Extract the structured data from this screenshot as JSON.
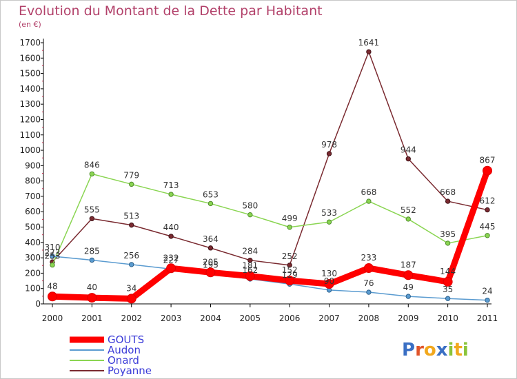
{
  "title": "Evolution du Montant de la Dette par Habitant",
  "subtitle": "(en €)",
  "logo": "Proxiti",
  "chart_data": {
    "type": "line",
    "title": "Evolution du Montant de la Dette par Habitant",
    "ylabel": "(en €)",
    "xlabel": "",
    "x": [
      "2000",
      "2001",
      "2002",
      "2003",
      "2004",
      "2005",
      "2006",
      "2007",
      "2008",
      "2009",
      "2010",
      "2011"
    ],
    "ylim": [
      0,
      1700
    ],
    "yticks": [
      0,
      100,
      200,
      300,
      400,
      500,
      600,
      700,
      800,
      900,
      1000,
      1100,
      1200,
      1300,
      1400,
      1500,
      1600,
      1700
    ],
    "grid": false,
    "legend_position": "bottom-left",
    "series": [
      {
        "name": "GOUTS",
        "color": "#ff0000",
        "values": [
          48,
          40,
          34,
          232,
          205,
          181,
          152,
          130,
          233,
          187,
          144,
          867
        ]
      },
      {
        "name": "Audon",
        "color": "#5a9bd0",
        "values": [
          310,
          285,
          256,
          227,
          195,
          162,
          129,
          90,
          76,
          49,
          35,
          24
        ]
      },
      {
        "name": "Onard",
        "color": "#8ad552",
        "values": [
          253,
          846,
          779,
          713,
          653,
          580,
          499,
          533,
          668,
          552,
          395,
          445
        ]
      },
      {
        "name": "Poyanne",
        "color": "#7a2a30",
        "values": [
          273,
          555,
          513,
          440,
          364,
          284,
          252,
          978,
          1641,
          944,
          668,
          612
        ]
      }
    ]
  }
}
